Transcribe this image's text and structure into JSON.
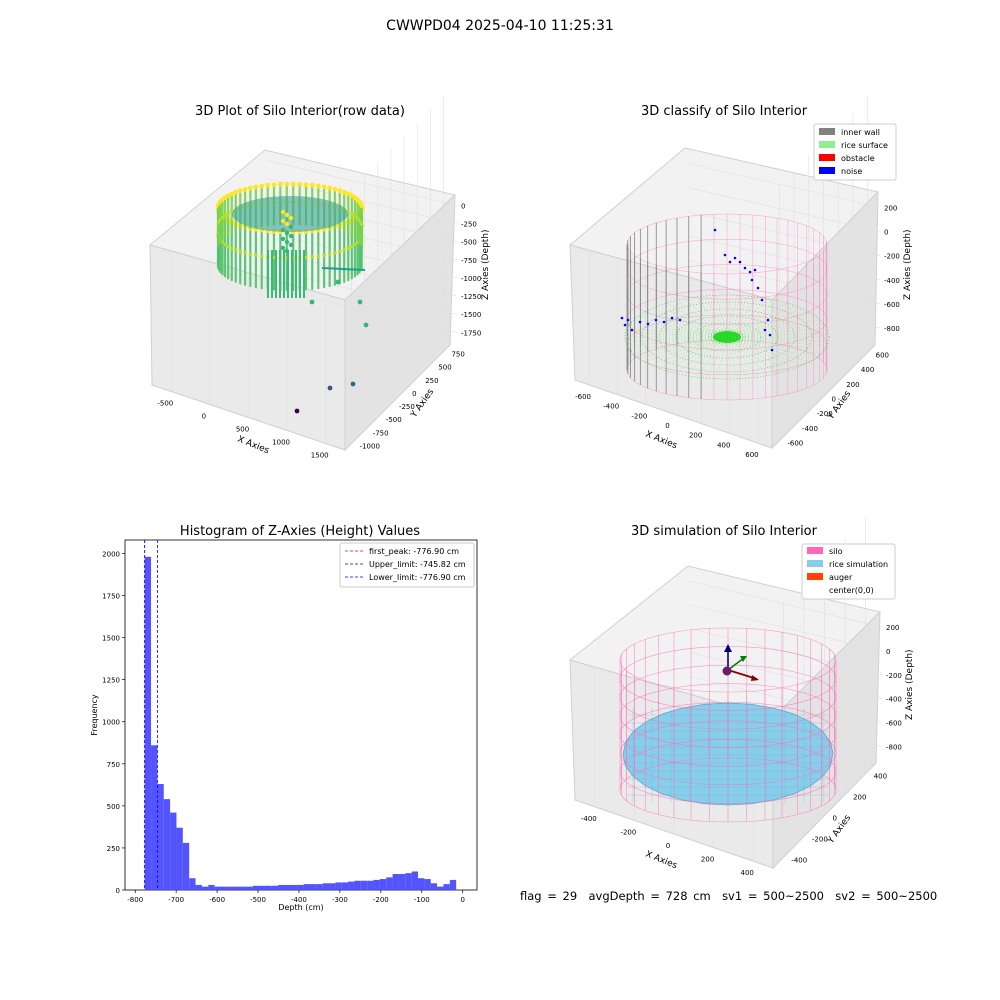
{
  "suptitle": "CWWPD04 2025-04-10 11:25:31",
  "footer": {
    "flag": "flag = 29",
    "avg_depth": "avgDepth = 728 cm",
    "sv1": "sv1 = 500~2500",
    "sv2": "sv2 = 500~2500"
  },
  "colors": {
    "inner_wall": "#808080",
    "rice_surface": "#90ee90",
    "obstacle": "#ff0000",
    "noise": "#0000ff",
    "silo": "#ff69b4",
    "rice_simulation": "#87ceeb",
    "auger": "#ff4500",
    "hist_bar": "#4b4bff",
    "first_peak": "#ff0000",
    "limit": "#0000ff"
  },
  "chart_data": [
    {
      "type": "scatter",
      "projection": "3d",
      "title": "3D Plot of Silo Interior(row data)",
      "xlabel": "X Axies",
      "ylabel": "Y Axies",
      "zlabel": "Z Axies (Depth)",
      "xticks": [
        "-500",
        "0",
        "500",
        "1000",
        "1500"
      ],
      "yticks": [
        "750",
        "500",
        "250",
        "0",
        "-250",
        "-500",
        "-750",
        "-1000"
      ],
      "zticks": [
        "0",
        "-250",
        "-500",
        "-750",
        "-1000",
        "-1250",
        "-1500",
        "-1750"
      ],
      "colormap": "viridis",
      "outliers": [
        {
          "x": 1080,
          "y": -950,
          "z": -1750
        },
        {
          "x": 1200,
          "y": -800,
          "z": -1600
        },
        {
          "x": 1350,
          "y": -700,
          "z": -1550
        },
        {
          "x": 700,
          "y": 600,
          "z": -1100
        }
      ]
    },
    {
      "type": "scatter",
      "projection": "3d",
      "title": "3D classify of Silo Interior",
      "xlabel": "X Axies",
      "ylabel": "Y Axies",
      "zlabel": "Z Axies (Depth)",
      "xticks": [
        "-600",
        "-400",
        "-200",
        "0",
        "200",
        "400",
        "600"
      ],
      "yticks": [
        "600",
        "400",
        "200",
        "0",
        "-200",
        "-400",
        "-600"
      ],
      "zticks": [
        "200",
        "0",
        "-200",
        "-400",
        "-600",
        "-800"
      ],
      "legend": [
        "inner wall",
        "rice surface",
        "obstacle",
        "noise"
      ],
      "legend_position": "upper-right"
    },
    {
      "type": "bar",
      "title": "Histogram of Z-Axies (Height) Values",
      "xlabel": "Depth (cm)",
      "ylabel": "Frequency",
      "xlim": [
        -825,
        35
      ],
      "ylim": [
        0,
        2080
      ],
      "xticks": [
        "-800",
        "-700",
        "-600",
        "-500",
        "-400",
        "-300",
        "-200",
        "-100",
        "0"
      ],
      "xtick_values": [
        -800,
        -700,
        -600,
        -500,
        -400,
        -300,
        -200,
        -100,
        0
      ],
      "yticks": [
        "0",
        "250",
        "500",
        "750",
        "1000",
        "1250",
        "1500",
        "1750",
        "2000"
      ],
      "ytick_values": [
        0,
        250,
        500,
        750,
        1000,
        1250,
        1500,
        1750,
        2000
      ],
      "bin_start": -776.9,
      "bin_width": 15.53,
      "values": [
        1980,
        860,
        630,
        540,
        460,
        370,
        280,
        70,
        30,
        20,
        30,
        20,
        20,
        20,
        20,
        20,
        20,
        25,
        25,
        25,
        25,
        30,
        30,
        30,
        30,
        35,
        35,
        35,
        40,
        40,
        45,
        45,
        50,
        55,
        55,
        55,
        60,
        65,
        75,
        95,
        95,
        100,
        110,
        70,
        65,
        40,
        20,
        35,
        60
      ],
      "vlines": [
        {
          "label": "first_peak: -776.90 cm",
          "x": -776.9,
          "color": "#ff0000"
        },
        {
          "label": "Upper_limit: -745.82 cm",
          "x": -745.82,
          "color": "#0000ff"
        },
        {
          "label": "Lower_limit: -776.90 cm",
          "x": -776.9,
          "color": "#0000ff"
        }
      ],
      "legend_position": "upper-right"
    },
    {
      "type": "area",
      "projection": "3d",
      "title": "3D simulation of Silo Interior",
      "xlabel": "X Axies",
      "ylabel": "Y Axies",
      "zlabel": "Z Axies (Depth)",
      "xticks": [
        "-400",
        "-200",
        "0",
        "200",
        "400"
      ],
      "yticks": [
        "400",
        "200",
        "0",
        "-200",
        "-400"
      ],
      "zticks": [
        "200",
        "0",
        "-200",
        "-400",
        "-600",
        "-800"
      ],
      "legend": [
        "silo",
        "rice simulation",
        "auger",
        "center(0,0)"
      ],
      "legend_position": "upper-right"
    }
  ]
}
